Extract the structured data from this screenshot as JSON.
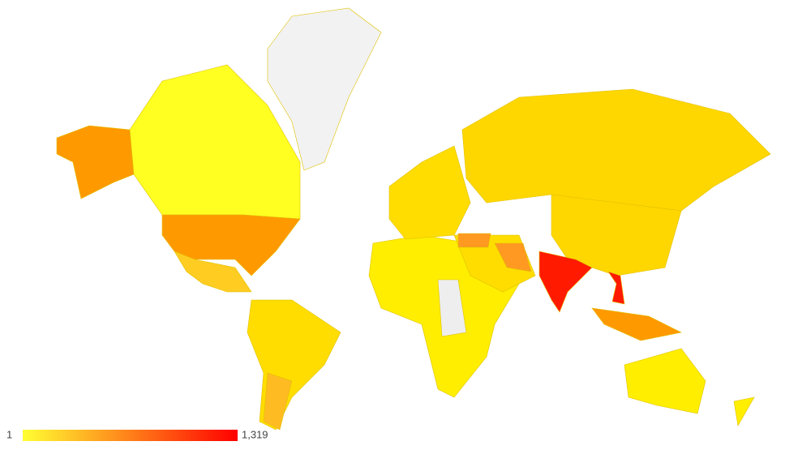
{
  "legend": {
    "min": 1,
    "max": {
      "value": 1319,
      "label": "1,319"
    },
    "colors": [
      "#ffff33",
      "#ff0000"
    ]
  }
}
